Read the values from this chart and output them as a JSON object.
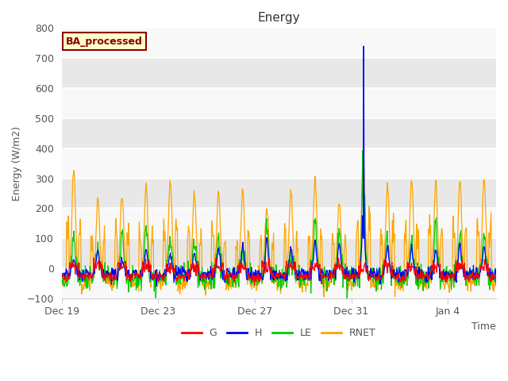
{
  "title": "Energy",
  "xlabel": "Time",
  "ylabel": "Energy (W/m2)",
  "ylim": [
    -100,
    800
  ],
  "yticks": [
    -100,
    0,
    100,
    200,
    300,
    400,
    500,
    600,
    700,
    800
  ],
  "plot_bg_color": "#f0f0f0",
  "fig_bg_color": "#ffffff",
  "legend_label": "BA_processed",
  "legend_bg": "#ffffcc",
  "legend_border": "#8b0000",
  "legend_text_color": "#8b0000",
  "line_colors": {
    "G": "#ff0000",
    "H": "#0000ff",
    "LE": "#00cc00",
    "RNET": "#ffa500"
  },
  "x_tick_labels": [
    "Dec 19",
    "Dec 23",
    "Dec 27",
    "Dec 31",
    "Jan 4"
  ],
  "x_tick_positions": [
    0,
    4,
    8,
    12,
    16
  ],
  "total_days": 18,
  "points_per_day": 48,
  "grid_color": "#ffffff",
  "spine_color": "#cccccc",
  "tick_label_color": "#555555",
  "title_color": "#333333",
  "axis_label_color": "#555555",
  "band_colors": [
    "#f8f8f8",
    "#e8e8e8"
  ]
}
